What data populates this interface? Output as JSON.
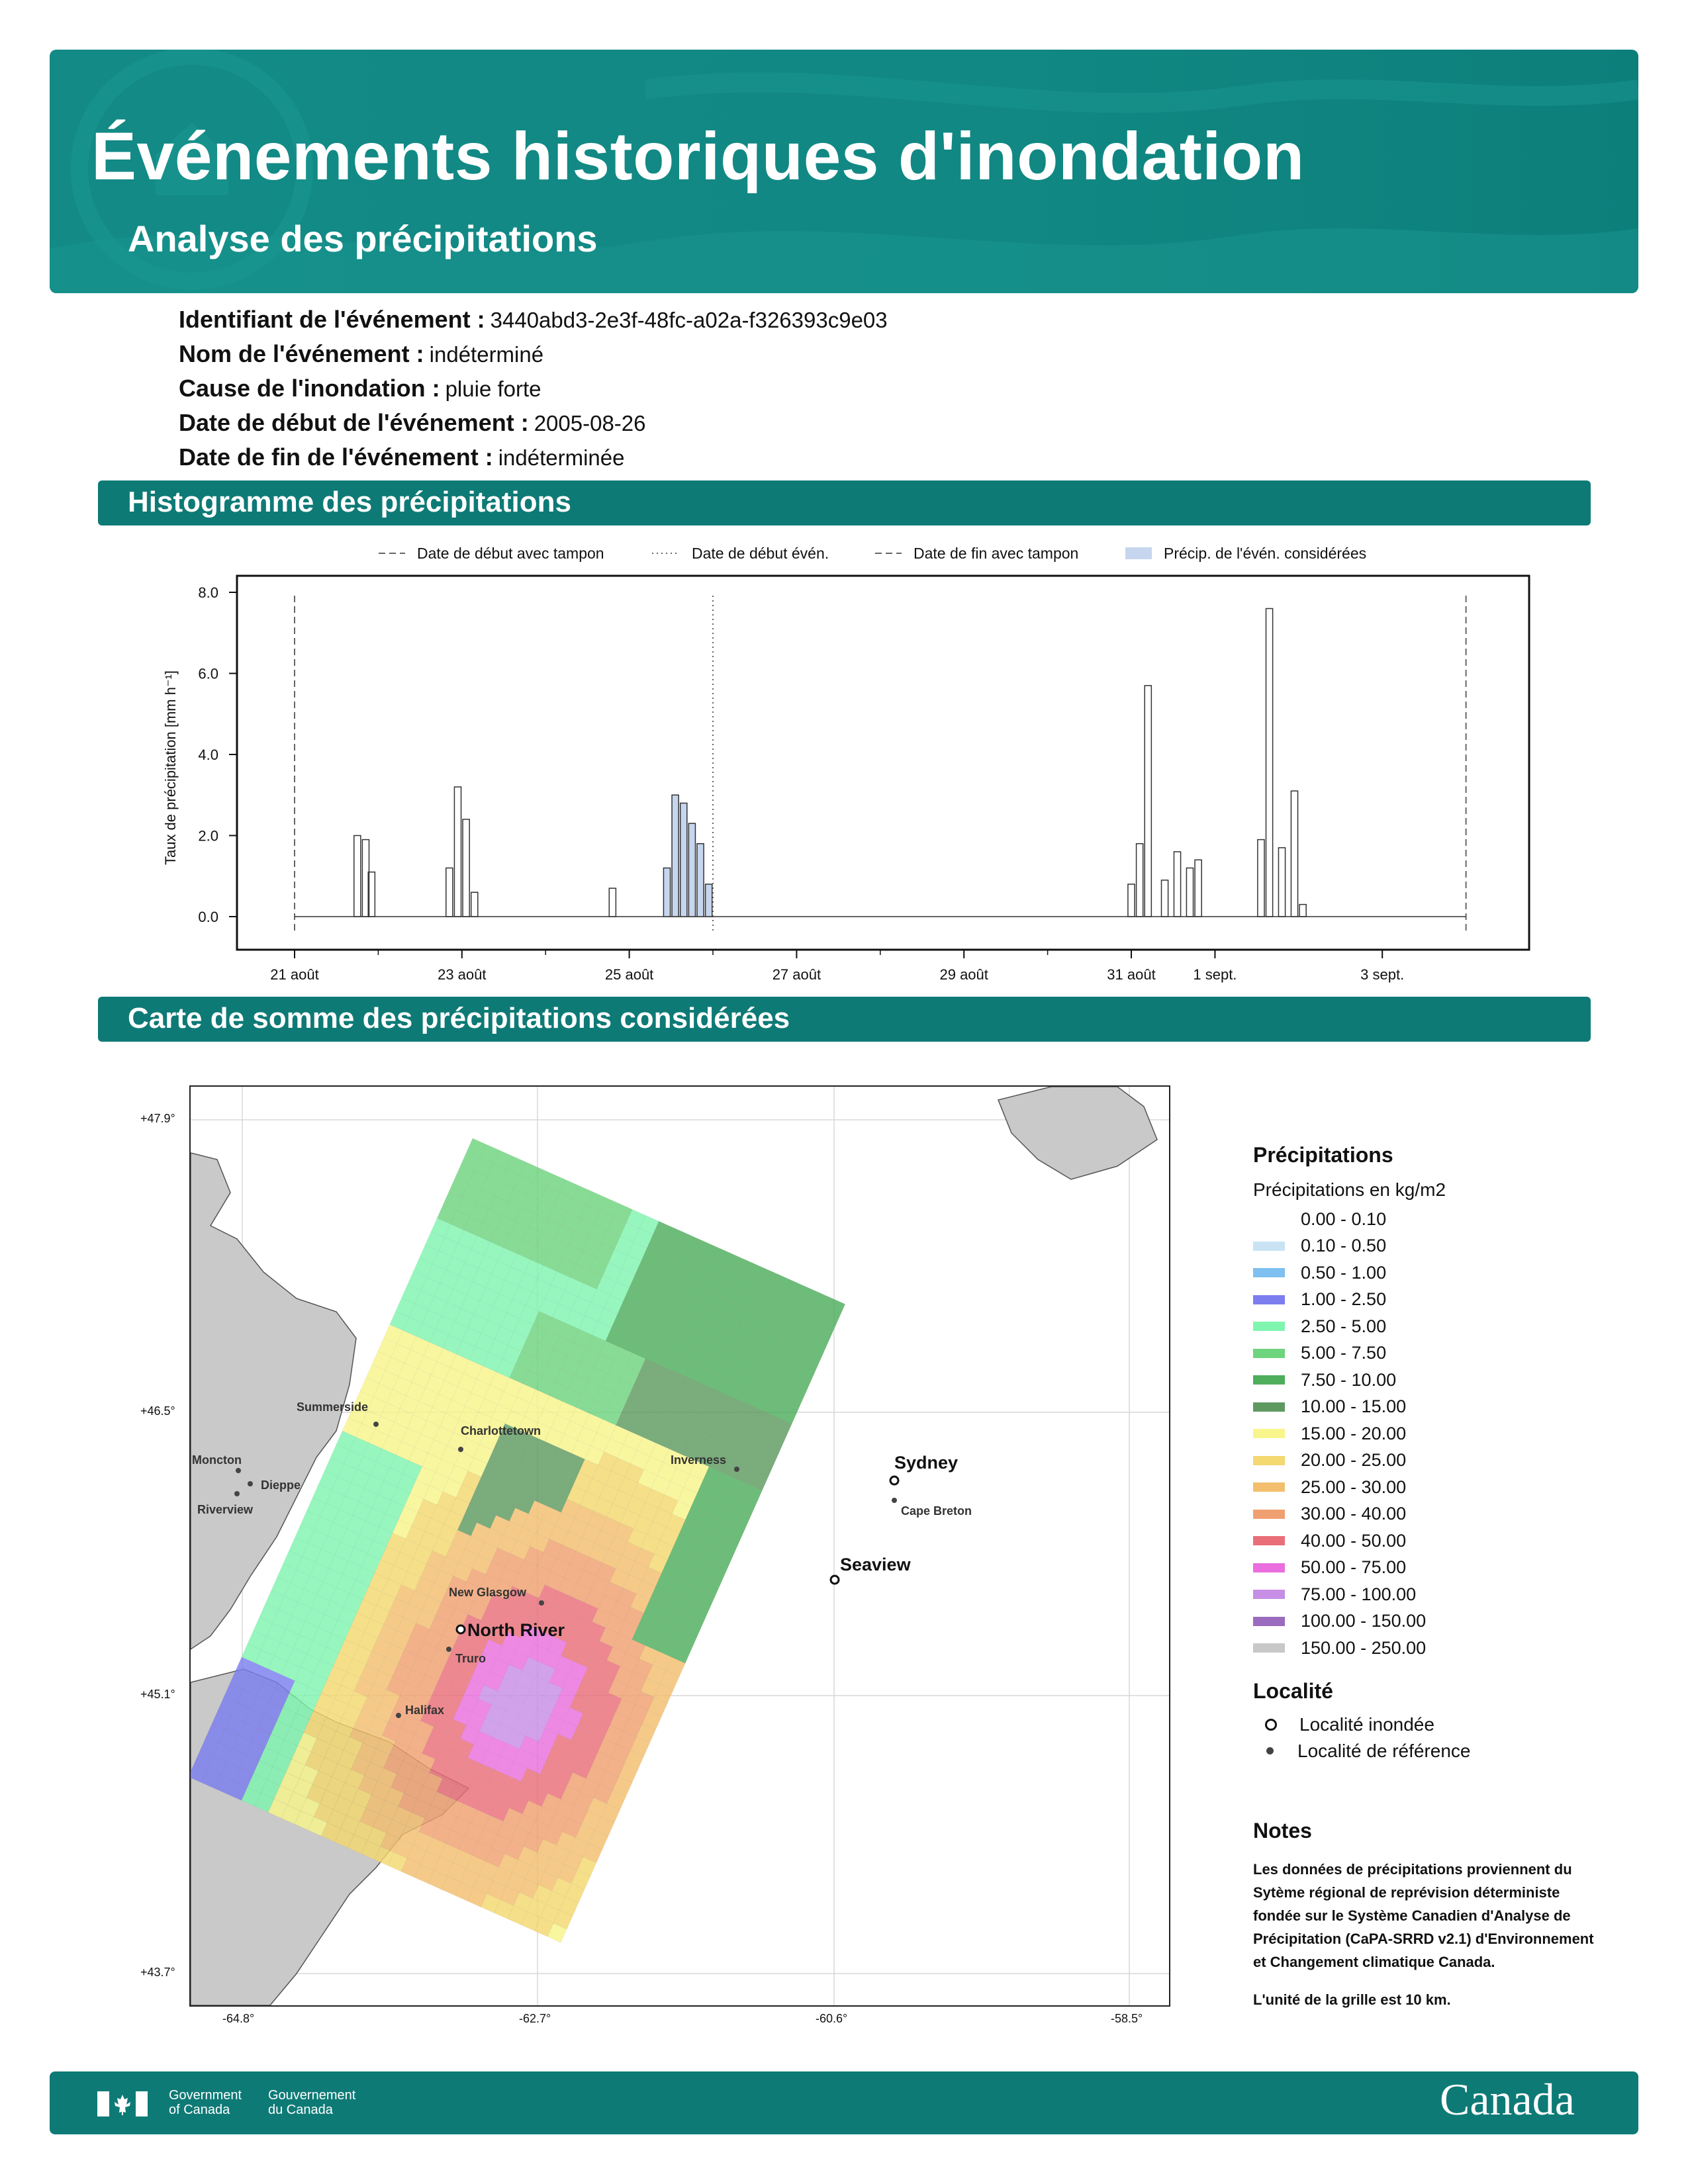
{
  "header": {
    "title": "Événements historiques d'inondation",
    "subtitle": "Analyse des précipitations"
  },
  "event": {
    "id_label": "Identifiant de l'événement :",
    "id_value": "3440abd3-2e3f-48fc-a02a-f326393c9e03",
    "name_label": "Nom de l'événement :",
    "name_value": "indéterminé",
    "cause_label": "Cause de l'inondation :",
    "cause_value": "pluie forte",
    "start_label": "Date de début de l'événement :",
    "start_value": "2005-08-26",
    "end_label": "Date de fin de l'événement :",
    "end_value": "indéterminée"
  },
  "sections": {
    "histogram": "Histogramme des précipitations",
    "map": "Carte de somme des précipitations considérées"
  },
  "chart_data": {
    "type": "bar",
    "ylabel": "Taux de précipitation [mm h⁻¹]",
    "xlabel": "",
    "ylim": [
      0,
      8
    ],
    "yticks": [
      "0.0",
      "2.0",
      "4.0",
      "6.0",
      "8.0"
    ],
    "xticks": [
      "21 août",
      "23 août",
      "25 août",
      "27 août",
      "29 août",
      "31 août",
      "1 sept.",
      "3 sept."
    ],
    "legend": [
      {
        "label": "Date de début avec tampon",
        "style": "dashed"
      },
      {
        "label": "Date de début évén.",
        "style": "dotted"
      },
      {
        "label": "Date de fin avec tampon",
        "style": "dashed"
      },
      {
        "label": "Précip. de l'évén. considérées",
        "style": "fill",
        "color": "#c6d6ee"
      }
    ],
    "x_unit": "days since 2005-08-21 00:00",
    "buffer_start_day": 0,
    "event_start_day": 5,
    "buffer_end_day": 14,
    "peaks": [
      {
        "day": 0.75,
        "value": 2.0
      },
      {
        "day": 0.85,
        "value": 1.9
      },
      {
        "day": 0.92,
        "value": 1.1
      },
      {
        "day": 1.85,
        "value": 1.2
      },
      {
        "day": 1.95,
        "value": 3.2
      },
      {
        "day": 2.05,
        "value": 2.4
      },
      {
        "day": 2.15,
        "value": 0.6
      },
      {
        "day": 3.8,
        "value": 0.7
      },
      {
        "day": 4.45,
        "value": 1.2
      },
      {
        "day": 4.55,
        "value": 3.0
      },
      {
        "day": 4.65,
        "value": 2.8
      },
      {
        "day": 4.75,
        "value": 2.3
      },
      {
        "day": 4.85,
        "value": 1.8
      },
      {
        "day": 4.95,
        "value": 0.8
      },
      {
        "day": 10.0,
        "value": 0.8
      },
      {
        "day": 10.1,
        "value": 1.8
      },
      {
        "day": 10.2,
        "value": 5.7
      },
      {
        "day": 10.4,
        "value": 0.9
      },
      {
        "day": 10.55,
        "value": 1.6
      },
      {
        "day": 10.7,
        "value": 1.2
      },
      {
        "day": 10.8,
        "value": 1.4
      },
      {
        "day": 11.55,
        "value": 1.9
      },
      {
        "day": 11.65,
        "value": 7.6
      },
      {
        "day": 11.8,
        "value": 1.7
      },
      {
        "day": 11.95,
        "value": 3.1
      },
      {
        "day": 12.05,
        "value": 0.3
      }
    ]
  },
  "map": {
    "lat_labels": [
      "+47.9°",
      "+46.5°",
      "+45.1°",
      "+43.7°"
    ],
    "lon_labels": [
      "-64.8°",
      "-62.7°",
      "-60.6°",
      "-58.5°"
    ],
    "places": [
      {
        "name": "Summerside",
        "type": "ref"
      },
      {
        "name": "Charlottetown",
        "type": "ref"
      },
      {
        "name": "Moncton",
        "type": "ref"
      },
      {
        "name": "Dieppe",
        "type": "ref"
      },
      {
        "name": "Riverview",
        "type": "ref"
      },
      {
        "name": "Inverness",
        "type": "ref"
      },
      {
        "name": "Sydney",
        "type": "flood"
      },
      {
        "name": "Cape Breton",
        "type": "ref"
      },
      {
        "name": "Seaview",
        "type": "flood"
      },
      {
        "name": "New Glasgow",
        "type": "ref"
      },
      {
        "name": "North River",
        "type": "flood"
      },
      {
        "name": "Truro",
        "type": "ref"
      },
      {
        "name": "Halifax",
        "type": "ref"
      }
    ]
  },
  "legend": {
    "title": "Précipitations",
    "subtitle": "Précipitations en kg/m2",
    "classes": [
      {
        "label": "0.00 - 0.10",
        "color": "#ffffff"
      },
      {
        "label": "0.10 - 0.50",
        "color": "#c9e3f5"
      },
      {
        "label": "0.50 - 1.00",
        "color": "#7ec0f0"
      },
      {
        "label": "1.00 - 2.50",
        "color": "#7c7ef0"
      },
      {
        "label": "2.50 - 5.00",
        "color": "#7ff5b0"
      },
      {
        "label": "5.00 - 7.50",
        "color": "#6fd47e"
      },
      {
        "label": "7.50 - 10.00",
        "color": "#4fae5c"
      },
      {
        "label": "10.00 - 15.00",
        "color": "#5e9a60"
      },
      {
        "label": "15.00 - 20.00",
        "color": "#f8f58c"
      },
      {
        "label": "20.00 - 25.00",
        "color": "#f4d870"
      },
      {
        "label": "25.00 - 30.00",
        "color": "#f3bf6e"
      },
      {
        "label": "30.00 - 40.00",
        "color": "#f0a070"
      },
      {
        "label": "40.00 - 50.00",
        "color": "#ea6e78"
      },
      {
        "label": "50.00 - 75.00",
        "color": "#ea6ede"
      },
      {
        "label": "75.00 - 100.00",
        "color": "#c78ee6"
      },
      {
        "label": "100.00 - 150.00",
        "color": "#9a6bbf"
      },
      {
        "label": "150.00 - 250.00",
        "color": "#c8c8c8"
      }
    ],
    "locality_title": "Localité",
    "locality_flood": "Localité inondée",
    "locality_ref": "Localité de référence"
  },
  "notes": {
    "title": "Notes",
    "text": "Les données de précipitations proviennent du Sytème régional de reprévision déterministe fondée sur le Système Canadien d'Analyse de Précipitation (CaPA-SRRD v2.1) d'Environnement et Changement climatique Canada.",
    "grid": "L'unité de la grille est 10 km."
  },
  "footer": {
    "gov_en_1": "Government",
    "gov_en_2": "of Canada",
    "gov_fr_1": "Gouvernement",
    "gov_fr_2": "du Canada",
    "wordmark": "Canada"
  }
}
